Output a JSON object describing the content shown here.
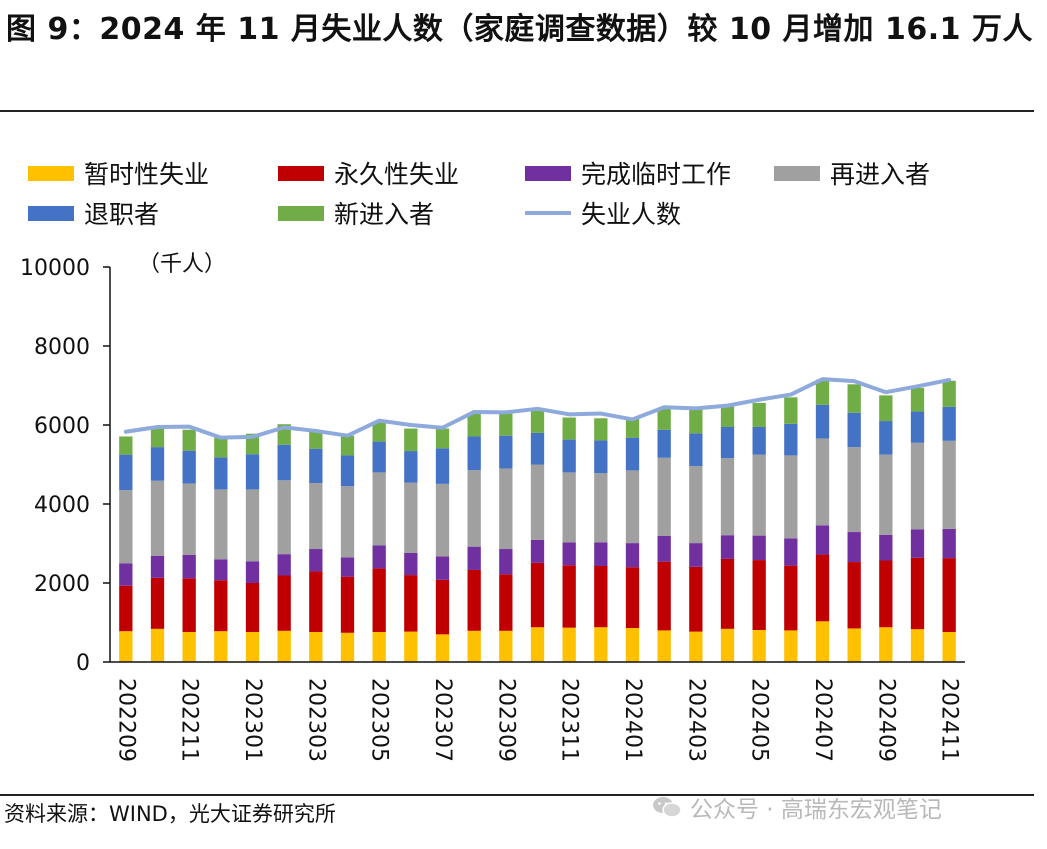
{
  "title": "图 9：2024 年 11 月失业人数（家庭调查数据）较 10 月增加 16.1 万人",
  "source": "资料来源：WIND，光大证券研究所",
  "watermark": "公众号 · 高瑞东宏观笔记",
  "colors": {
    "temporary": "#FFC000",
    "permanent": "#C00000",
    "completed_temp": "#7030A0",
    "reentrants": "#A0A0A0",
    "job_leavers": "#4472C4",
    "new_entrants": "#70AD47",
    "unemployed_line": "#8EA9DB"
  },
  "chart_data": {
    "type": "bar",
    "stacked": true,
    "unit_label": "（千人）",
    "ylim": [
      0,
      10000
    ],
    "yticks": [
      0,
      2000,
      4000,
      6000,
      8000,
      10000
    ],
    "categories": [
      "202209",
      "202210",
      "202211",
      "202212",
      "202301",
      "202302",
      "202303",
      "202304",
      "202305",
      "202306",
      "202307",
      "202308",
      "202309",
      "202310",
      "202311",
      "202312",
      "202401",
      "202402",
      "202403",
      "202404",
      "202405",
      "202406",
      "202407",
      "202408",
      "202409",
      "202410",
      "202411"
    ],
    "xtick_labels": [
      "202209",
      "",
      "202211",
      "",
      "202301",
      "",
      "202303",
      "",
      "202305",
      "",
      "202307",
      "",
      "202309",
      "",
      "202311",
      "",
      "202401",
      "",
      "202403",
      "",
      "202405",
      "",
      "202407",
      "",
      "202409",
      "",
      "202411"
    ],
    "series": [
      {
        "name": "暂时性失业",
        "key": "temporary",
        "values": [
          780,
          840,
          760,
          780,
          760,
          790,
          760,
          740,
          760,
          770,
          700,
          790,
          790,
          880,
          870,
          880,
          860,
          800,
          770,
          840,
          810,
          800,
          1030,
          850,
          880,
          830,
          760
        ]
      },
      {
        "name": "永久性失业",
        "key": "permanent",
        "values": [
          1150,
          1290,
          1360,
          1290,
          1240,
          1400,
          1530,
          1420,
          1610,
          1430,
          1380,
          1540,
          1430,
          1630,
          1580,
          1550,
          1540,
          1740,
          1640,
          1770,
          1770,
          1640,
          1690,
          1680,
          1690,
          1810,
          1870
        ]
      },
      {
        "name": "完成临时工作",
        "key": "completed_temp",
        "values": [
          570,
          560,
          590,
          530,
          550,
          540,
          570,
          490,
          580,
          560,
          590,
          590,
          640,
          580,
          580,
          600,
          610,
          650,
          600,
          600,
          620,
          690,
          740,
          760,
          650,
          720,
          740
        ]
      },
      {
        "name": "再进入者",
        "key": "reentrants",
        "values": [
          1850,
          1900,
          1810,
          1770,
          1820,
          1870,
          1670,
          1800,
          1850,
          1780,
          1840,
          1940,
          2040,
          1910,
          1770,
          1750,
          1840,
          1980,
          1950,
          1950,
          2050,
          2100,
          2200,
          2150,
          2030,
          2190,
          2230
        ]
      },
      {
        "name": "退职者",
        "key": "job_leavers",
        "values": [
          900,
          850,
          830,
          810,
          890,
          900,
          870,
          780,
          780,
          800,
          900,
          850,
          830,
          800,
          830,
          830,
          830,
          710,
          830,
          790,
          700,
          800,
          850,
          870,
          850,
          790,
          860
        ]
      },
      {
        "name": "新进入者",
        "key": "new_entrants",
        "values": [
          460,
          470,
          530,
          500,
          520,
          520,
          440,
          500,
          480,
          570,
          500,
          590,
          560,
          560,
          560,
          560,
          490,
          560,
          620,
          520,
          610,
          670,
          640,
          720,
          650,
          600,
          660
        ]
      }
    ],
    "line": {
      "name": "失业人数",
      "key": "unemployed_line",
      "values": [
        5830,
        5950,
        5960,
        5680,
        5700,
        5940,
        5850,
        5730,
        6110,
        6000,
        5930,
        6330,
        6320,
        6410,
        6270,
        6290,
        6140,
        6450,
        6420,
        6490,
        6640,
        6770,
        7160,
        7110,
        6830,
        6980,
        7140
      ]
    }
  }
}
